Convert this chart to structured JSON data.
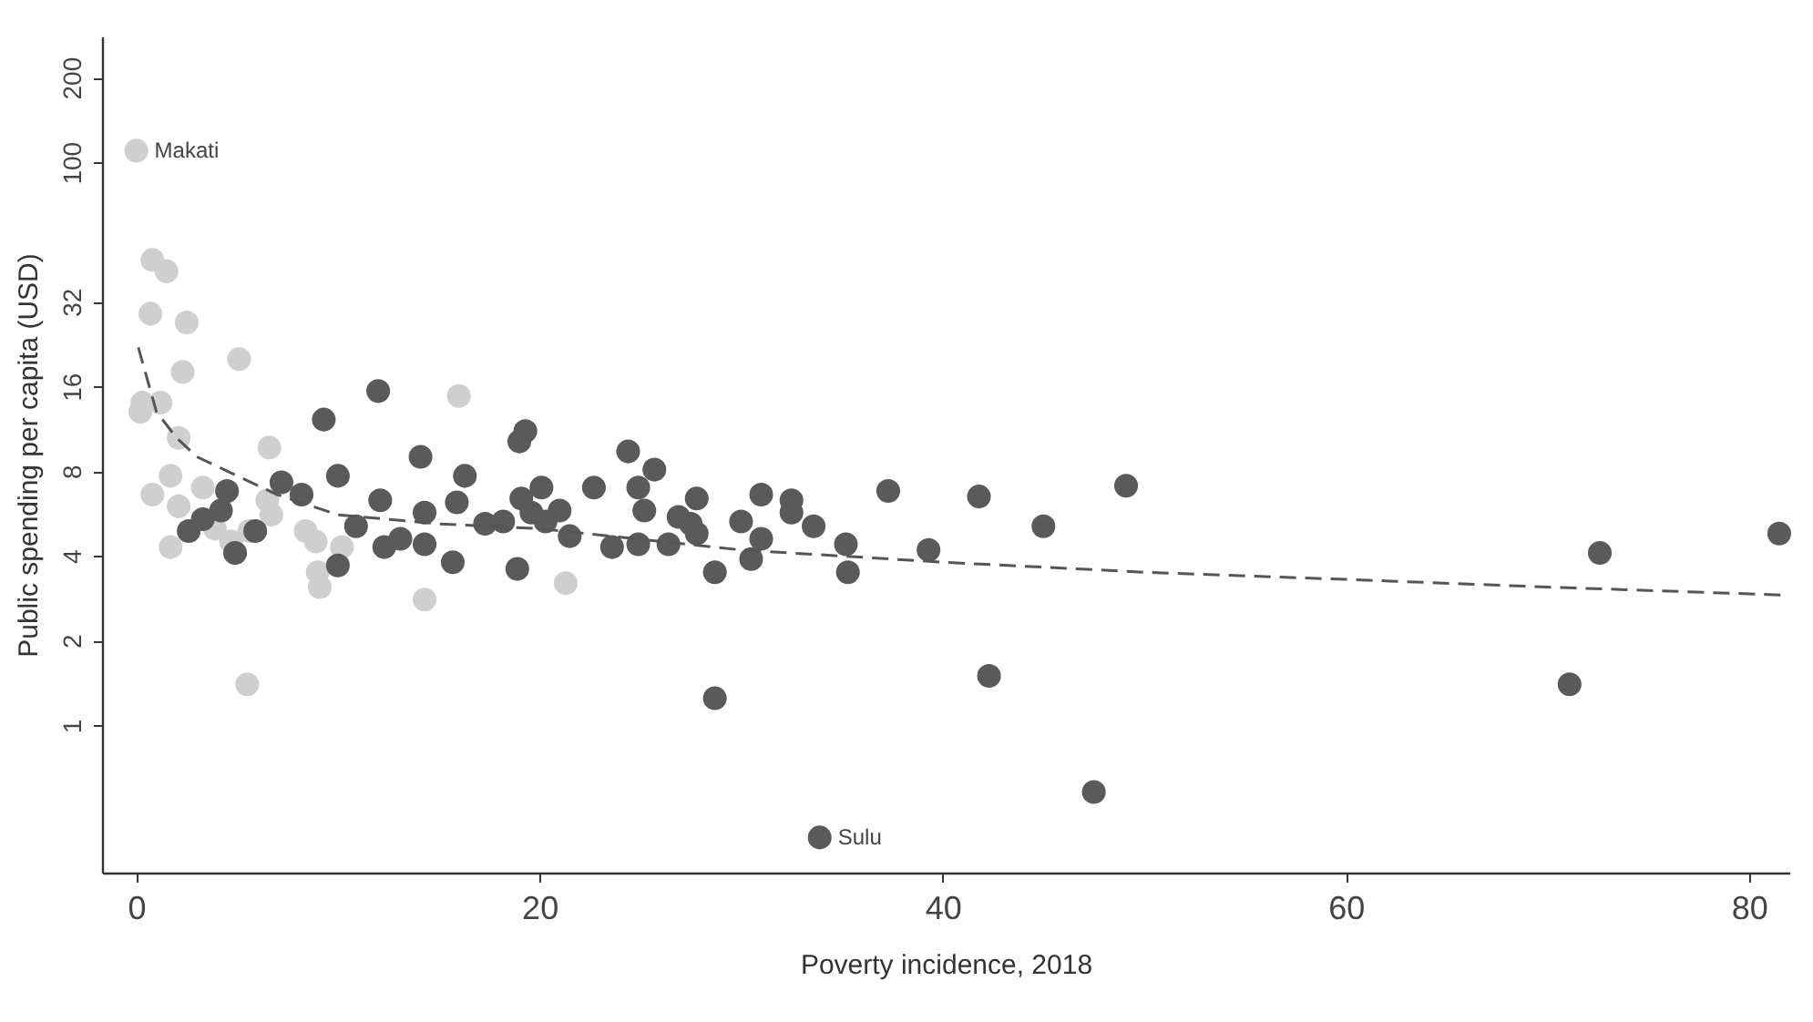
{
  "chart_data": {
    "type": "scatter",
    "xlabel": "Poverty incidence, 2018",
    "ylabel": "Public spending per capita (USD)",
    "log": "y",
    "grid": false,
    "marker": "circle",
    "xlim": [
      -1.7,
      82
    ],
    "xticks": [
      0,
      20,
      40,
      60,
      80
    ],
    "ylim": [
      0.3,
      280
    ],
    "yticks": [
      1,
      2,
      4,
      8,
      16,
      32,
      100,
      200
    ],
    "series": [
      {
        "color": "#cfcfcf",
        "x": [
          0,
          0.8,
          1.5,
          0.7,
          2.5,
          5.1,
          2.3,
          0.3,
          1.2,
          0.2,
          6.6,
          2.1,
          0.8,
          1.7,
          3.3,
          2.1,
          1.7,
          3.9,
          4.7,
          5.6,
          6.7,
          8.9,
          9.1,
          9.0,
          5.5,
          10.2,
          14.3,
          16.0,
          21.3,
          6.5,
          8.4
        ],
        "values": [
          110,
          45,
          41,
          29,
          27,
          20,
          18,
          14,
          14,
          13,
          9.7,
          10.5,
          6.6,
          7.7,
          7.0,
          6.0,
          4.3,
          5.0,
          4.5,
          4.9,
          5.6,
          4.5,
          3.1,
          3.5,
          1.4,
          4.3,
          2.8,
          14.8,
          3.2,
          6.3,
          4.9
        ]
      },
      {
        "color": "#5a5a5a",
        "x": [
          2.6,
          3.3,
          4.2,
          4.5,
          4.9,
          5.9,
          7.2,
          8.2,
          9.3,
          10.0,
          10.0,
          10.9,
          12.1,
          12.0,
          12.3,
          13.1,
          14.1,
          14.3,
          14.3,
          15.7,
          15.9,
          16.3,
          17.3,
          18.2,
          18.9,
          19.0,
          19.3,
          19.1,
          19.6,
          20.1,
          20.3,
          21.0,
          21.5,
          22.7,
          23.6,
          24.4,
          24.9,
          25.2,
          25.7,
          24.9,
          26.4,
          26.9,
          27.8,
          27.8,
          27.5,
          28.7,
          28.7,
          30.0,
          30.5,
          31.0,
          31.0,
          32.5,
          32.5,
          33.6,
          33.9,
          35.2,
          35.3,
          37.3,
          39.3,
          41.8,
          42.3,
          45.0,
          47.5,
          49.1,
          71.1,
          72.6,
          81.5
        ],
        "values": [
          4.9,
          5.4,
          5.8,
          6.8,
          4.1,
          4.9,
          7.3,
          6.6,
          12.2,
          7.7,
          3.7,
          5.1,
          6.3,
          15.4,
          4.3,
          4.6,
          9.0,
          5.7,
          4.4,
          3.8,
          6.2,
          7.7,
          5.2,
          5.3,
          3.6,
          10.2,
          11.1,
          6.4,
          5.7,
          7.0,
          5.3,
          5.8,
          4.7,
          7.0,
          4.3,
          9.4,
          7.0,
          5.8,
          8.1,
          4.4,
          4.4,
          5.5,
          4.8,
          6.4,
          5.2,
          3.5,
          1.25,
          5.3,
          3.9,
          6.6,
          4.6,
          6.3,
          5.7,
          5.1,
          0.4,
          4.4,
          3.5,
          6.8,
          4.2,
          6.5,
          1.5,
          5.1,
          0.58,
          7.1,
          1.4,
          4.1,
          4.8
        ]
      },
      {
        "type": "line",
        "line_style": "dashed",
        "marker": "none",
        "color": "#555555",
        "x": [
          0.1,
          1,
          2,
          3,
          5,
          7,
          10,
          15,
          20,
          30,
          40,
          50,
          60,
          70,
          82
        ],
        "values": [
          22,
          13,
          10.5,
          9,
          7.7,
          6.6,
          5.6,
          5.2,
          5.0,
          4.2,
          3.8,
          3.5,
          3.3,
          3.1,
          2.9
        ]
      }
    ],
    "annotations": [
      {
        "text": "Makati",
        "x": 0,
        "y": 110
      },
      {
        "text": "Sulu",
        "x": 33.9,
        "y": 0.4
      }
    ]
  }
}
